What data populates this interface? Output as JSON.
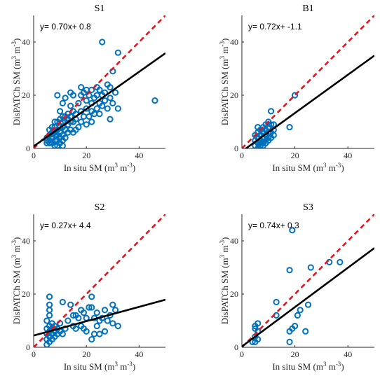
{
  "chart_data": [
    {
      "type": "scatter",
      "title": "S1",
      "xlabel": "In situ SM",
      "ylabel": "DisPATCh SM",
      "unit": "(m3 m-3)",
      "xlim": [
        0,
        50
      ],
      "ylim": [
        0,
        50
      ],
      "xticks": [
        "0",
        "20",
        "40"
      ],
      "yticks": [
        "0",
        "20",
        "40"
      ],
      "equation": "y= 0.70x+  0.8",
      "fit": {
        "slope": 0.7,
        "intercept": 0.8
      },
      "points": [
        [
          5,
          2
        ],
        [
          5,
          3
        ],
        [
          5,
          4
        ],
        [
          6,
          2
        ],
        [
          6,
          3
        ],
        [
          6,
          5
        ],
        [
          6,
          7
        ],
        [
          7,
          2
        ],
        [
          7,
          4
        ],
        [
          7,
          6
        ],
        [
          7,
          8
        ],
        [
          8,
          1
        ],
        [
          8,
          3
        ],
        [
          8,
          5
        ],
        [
          8,
          6
        ],
        [
          8,
          8
        ],
        [
          8,
          10
        ],
        [
          9,
          1
        ],
        [
          9,
          3
        ],
        [
          9,
          5
        ],
        [
          9,
          7
        ],
        [
          9,
          10
        ],
        [
          9,
          20
        ],
        [
          10,
          2
        ],
        [
          10,
          4
        ],
        [
          10,
          6
        ],
        [
          10,
          8
        ],
        [
          10,
          11
        ],
        [
          10,
          14
        ],
        [
          11,
          1
        ],
        [
          11,
          3
        ],
        [
          11,
          5
        ],
        [
          11,
          8
        ],
        [
          11,
          10
        ],
        [
          11,
          12
        ],
        [
          11,
          17
        ],
        [
          12,
          4
        ],
        [
          12,
          7
        ],
        [
          12,
          10
        ],
        [
          12,
          12
        ],
        [
          12,
          19
        ],
        [
          13,
          6
        ],
        [
          13,
          9
        ],
        [
          13,
          11
        ],
        [
          13,
          13
        ],
        [
          14,
          7
        ],
        [
          14,
          10
        ],
        [
          14,
          12
        ],
        [
          14,
          16
        ],
        [
          14,
          21
        ],
        [
          15,
          6
        ],
        [
          15,
          10
        ],
        [
          15,
          14
        ],
        [
          15,
          20
        ],
        [
          16,
          7
        ],
        [
          16,
          11
        ],
        [
          16,
          13
        ],
        [
          17,
          8
        ],
        [
          17,
          17
        ],
        [
          18,
          10
        ],
        [
          18,
          14
        ],
        [
          18,
          20
        ],
        [
          18,
          23
        ],
        [
          19,
          12
        ],
        [
          19,
          21
        ],
        [
          20,
          9
        ],
        [
          20,
          15
        ],
        [
          20,
          18
        ],
        [
          20,
          22
        ],
        [
          21,
          12
        ],
        [
          21,
          20
        ],
        [
          22,
          10
        ],
        [
          22,
          14
        ],
        [
          22,
          17
        ],
        [
          22,
          22
        ],
        [
          23,
          13
        ],
        [
          23,
          19
        ],
        [
          24,
          15
        ],
        [
          24,
          20
        ],
        [
          24,
          23
        ],
        [
          25,
          13
        ],
        [
          25,
          17
        ],
        [
          25,
          22
        ],
        [
          26,
          16
        ],
        [
          26,
          20
        ],
        [
          26,
          40
        ],
        [
          27,
          18
        ],
        [
          27,
          21
        ],
        [
          28,
          15
        ],
        [
          28,
          24
        ],
        [
          29,
          11
        ],
        [
          29,
          19
        ],
        [
          29,
          23
        ],
        [
          30,
          17
        ],
        [
          30,
          29
        ],
        [
          31,
          21
        ],
        [
          32,
          15
        ],
        [
          32,
          36
        ],
        [
          46,
          18
        ]
      ]
    },
    {
      "type": "scatter",
      "title": "B1",
      "xlabel": "In situ SM",
      "ylabel": "DisPATCh SM",
      "unit": "(m3 m-3)",
      "xlim": [
        0,
        50
      ],
      "ylim": [
        0,
        50
      ],
      "xticks": [
        "0",
        "20",
        "40"
      ],
      "yticks": [
        "0",
        "20",
        "40"
      ],
      "equation": "y= 0.72x+ -1.1",
      "fit": {
        "slope": 0.72,
        "intercept": -1.1
      },
      "points": [
        [
          5,
          1
        ],
        [
          5,
          3
        ],
        [
          5,
          5
        ],
        [
          6,
          0
        ],
        [
          6,
          2
        ],
        [
          6,
          4
        ],
        [
          6,
          6
        ],
        [
          6,
          8
        ],
        [
          7,
          1
        ],
        [
          7,
          2
        ],
        [
          7,
          3
        ],
        [
          7,
          5
        ],
        [
          7,
          7
        ],
        [
          8,
          1
        ],
        [
          8,
          2
        ],
        [
          8,
          4
        ],
        [
          8,
          6
        ],
        [
          8,
          8
        ],
        [
          9,
          2
        ],
        [
          9,
          3
        ],
        [
          9,
          5
        ],
        [
          9,
          7
        ],
        [
          9,
          9
        ],
        [
          10,
          3
        ],
        [
          10,
          4
        ],
        [
          10,
          6
        ],
        [
          10,
          8
        ],
        [
          10,
          10
        ],
        [
          11,
          4
        ],
        [
          11,
          6
        ],
        [
          11,
          9
        ],
        [
          11,
          14
        ],
        [
          12,
          5
        ],
        [
          12,
          7
        ],
        [
          12,
          9
        ],
        [
          18,
          8
        ],
        [
          20,
          20
        ]
      ]
    },
    {
      "type": "scatter",
      "title": "S2",
      "xlabel": "In situ SM",
      "ylabel": "DisPATCh SM",
      "unit": "(m3 m-3)",
      "xlim": [
        0,
        50
      ],
      "ylim": [
        0,
        50
      ],
      "xticks": [
        "0",
        "20",
        "40"
      ],
      "yticks": [
        "0",
        "20",
        "40"
      ],
      "equation": "y= 0.27x+  4.4",
      "fit": {
        "slope": 0.27,
        "intercept": 4.4
      },
      "points": [
        [
          5,
          1
        ],
        [
          5,
          3
        ],
        [
          5,
          5
        ],
        [
          5,
          7
        ],
        [
          5,
          10
        ],
        [
          6,
          2
        ],
        [
          6,
          4
        ],
        [
          6,
          6
        ],
        [
          6,
          8
        ],
        [
          6,
          12
        ],
        [
          6,
          14
        ],
        [
          6,
          16
        ],
        [
          6,
          19
        ],
        [
          7,
          3
        ],
        [
          7,
          5
        ],
        [
          7,
          7
        ],
        [
          7,
          9
        ],
        [
          8,
          4
        ],
        [
          8,
          6
        ],
        [
          8,
          8
        ],
        [
          9,
          5
        ],
        [
          9,
          7
        ],
        [
          10,
          6
        ],
        [
          10,
          9
        ],
        [
          11,
          5
        ],
        [
          11,
          17
        ],
        [
          12,
          7
        ],
        [
          13,
          10
        ],
        [
          14,
          16
        ],
        [
          15,
          8
        ],
        [
          15,
          12
        ],
        [
          16,
          7
        ],
        [
          16,
          12
        ],
        [
          17,
          11
        ],
        [
          18,
          8
        ],
        [
          18,
          14
        ],
        [
          19,
          7
        ],
        [
          19,
          13
        ],
        [
          20,
          6
        ],
        [
          20,
          11
        ],
        [
          21,
          15
        ],
        [
          22,
          3
        ],
        [
          22,
          19
        ],
        [
          22,
          15
        ],
        [
          23,
          5
        ],
        [
          23,
          11
        ],
        [
          24,
          8
        ],
        [
          24,
          13
        ],
        [
          25,
          5
        ],
        [
          25,
          10
        ],
        [
          26,
          11
        ],
        [
          27,
          6
        ],
        [
          27,
          14
        ],
        [
          28,
          10
        ],
        [
          29,
          12
        ],
        [
          30,
          9
        ],
        [
          30,
          16
        ],
        [
          31,
          14
        ],
        [
          32,
          8
        ]
      ]
    },
    {
      "type": "scatter",
      "title": "S3",
      "xlabel": "In situ SM",
      "ylabel": "DisPATCh SM",
      "unit": "(m3 m-3)",
      "xlim": [
        0,
        50
      ],
      "ylim": [
        0,
        50
      ],
      "xticks": [
        "0",
        "20",
        "40"
      ],
      "yticks": [
        "0",
        "20",
        "40"
      ],
      "equation": "y= 0.74x+  0.3",
      "fit": {
        "slope": 0.74,
        "intercept": 0.3
      },
      "points": [
        [
          4,
          2
        ],
        [
          5,
          2
        ],
        [
          5,
          4
        ],
        [
          5,
          7
        ],
        [
          5,
          8
        ],
        [
          6,
          3
        ],
        [
          6,
          6
        ],
        [
          6,
          9
        ],
        [
          13,
          12
        ],
        [
          13,
          17
        ],
        [
          18,
          2
        ],
        [
          18,
          6
        ],
        [
          18,
          29
        ],
        [
          19,
          44
        ],
        [
          19,
          7
        ],
        [
          20,
          8
        ],
        [
          21,
          12
        ],
        [
          22,
          14
        ],
        [
          24,
          6
        ],
        [
          25,
          16
        ],
        [
          26,
          30
        ],
        [
          33,
          32
        ],
        [
          37,
          32
        ]
      ]
    }
  ]
}
